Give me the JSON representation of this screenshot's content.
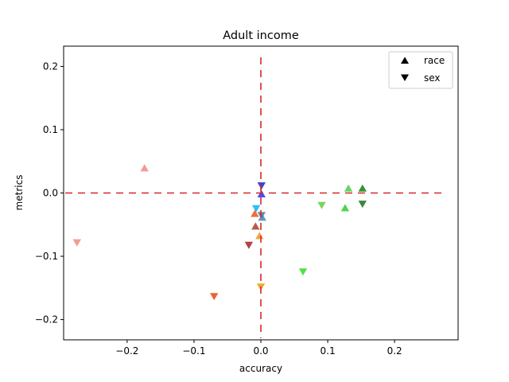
{
  "chart_data": {
    "type": "scatter",
    "title": "Adult income",
    "xlabel": "accuracy",
    "ylabel": "metrics",
    "xlim": [
      -0.295,
      0.295
    ],
    "ylim": [
      -0.232,
      0.232
    ],
    "xticks": [
      -0.2,
      -0.1,
      0.0,
      0.1,
      0.2
    ],
    "xtick_labels": [
      "−0.2",
      "−0.1",
      "0.0",
      "0.1",
      "0.2"
    ],
    "yticks": [
      -0.2,
      -0.1,
      0.0,
      0.1,
      0.2
    ],
    "ytick_labels": [
      "−0.2",
      "−0.1",
      "0.0",
      "0.1",
      "0.2"
    ],
    "grid": false,
    "legend_position": "top-right",
    "reference_lines": {
      "x": 0,
      "y": 0,
      "color": "#d62728",
      "style": "dashed"
    },
    "legend": [
      {
        "label": "race",
        "marker": "triangle-up"
      },
      {
        "label": "sex",
        "marker": "triangle-down"
      }
    ],
    "series": [
      {
        "marker": "triangle-up",
        "points": [
          {
            "x": -0.174,
            "y": 0.039,
            "color": "#f4908a"
          },
          {
            "x": -0.009,
            "y": -0.033,
            "color": "#e8622f"
          },
          {
            "x": -0.008,
            "y": -0.053,
            "color": "#b24a3a"
          },
          {
            "x": -0.002,
            "y": -0.068,
            "color": "#f0a030"
          },
          {
            "x": 0.002,
            "y": -0.039,
            "color": "#5090c0"
          },
          {
            "x": 0.001,
            "y": -0.002,
            "color": "#4040e0"
          },
          {
            "x": 0.131,
            "y": 0.007,
            "color": "#5ad05a"
          },
          {
            "x": 0.126,
            "y": -0.024,
            "color": "#40d040"
          },
          {
            "x": 0.152,
            "y": 0.007,
            "color": "#238b23"
          }
        ]
      },
      {
        "marker": "triangle-down",
        "points": [
          {
            "x": -0.275,
            "y": -0.078,
            "color": "#f4908a"
          },
          {
            "x": -0.07,
            "y": -0.163,
            "color": "#f05020"
          },
          {
            "x": -0.018,
            "y": -0.082,
            "color": "#b03030"
          },
          {
            "x": -0.007,
            "y": -0.024,
            "color": "#20b8f0"
          },
          {
            "x": 0.001,
            "y": -0.035,
            "color": "#6080a0"
          },
          {
            "x": 0.0,
            "y": -0.148,
            "color": "#f0a020"
          },
          {
            "x": 0.001,
            "y": 0.012,
            "color": "#3030d0"
          },
          {
            "x": 0.063,
            "y": -0.124,
            "color": "#40e030"
          },
          {
            "x": 0.091,
            "y": -0.019,
            "color": "#70d050"
          },
          {
            "x": 0.152,
            "y": -0.017,
            "color": "#2e7d2e"
          }
        ]
      }
    ]
  }
}
